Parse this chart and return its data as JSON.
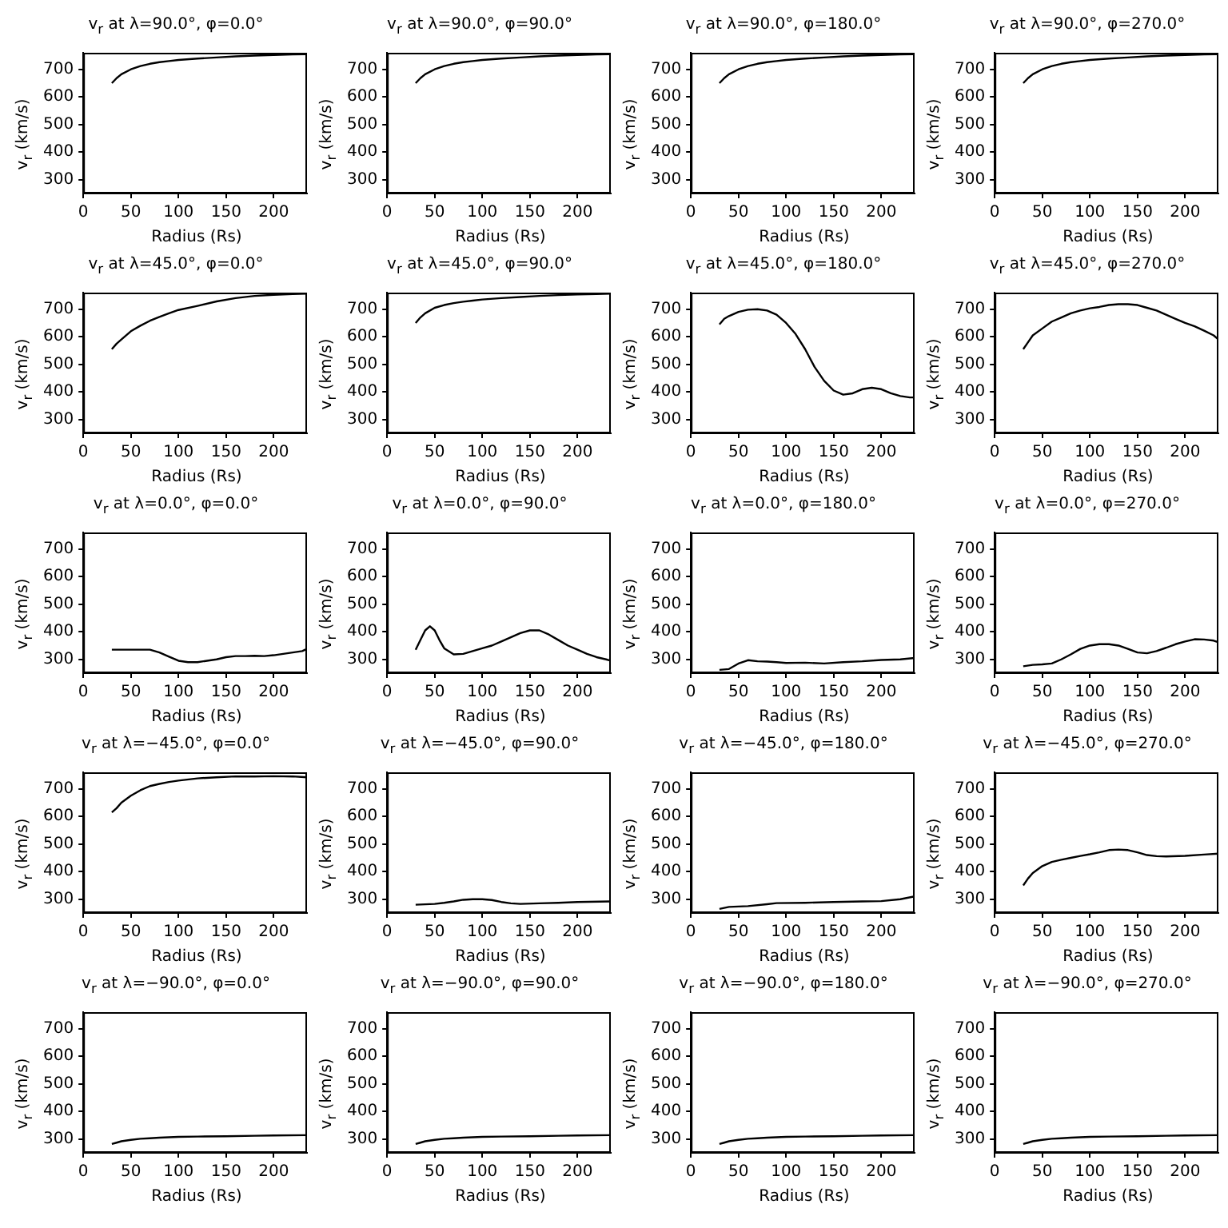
{
  "chart_data": [
    {
      "type": "line",
      "title": "v$_{r}$ at λ=90.0°, φ=0.0°",
      "xlabel": "Radius (Rs)",
      "ylabel": "v$_{r}$ (km/s)",
      "color": "#000000",
      "xlim": [
        0,
        235
      ],
      "ylim": [
        250,
        760
      ],
      "xticks": [
        0,
        50,
        100,
        150,
        200
      ],
      "yticks": [
        300,
        400,
        500,
        600,
        700
      ],
      "x": [
        30,
        35,
        40,
        50,
        60,
        70,
        80,
        90,
        100,
        120,
        140,
        160,
        180,
        200,
        220,
        235
      ],
      "values": [
        650,
        668,
        682,
        700,
        712,
        720,
        726,
        730,
        734,
        739,
        743,
        747,
        750,
        752,
        754,
        755
      ]
    },
    {
      "type": "line",
      "title": "v$_{r}$ at λ=90.0°, φ=90.0°",
      "xlabel": "Radius (Rs)",
      "ylabel": "v$_{r}$ (km/s)",
      "color": "#000000",
      "xlim": [
        0,
        235
      ],
      "ylim": [
        250,
        760
      ],
      "xticks": [
        0,
        50,
        100,
        150,
        200
      ],
      "yticks": [
        300,
        400,
        500,
        600,
        700
      ],
      "x": [
        30,
        35,
        40,
        50,
        60,
        70,
        80,
        90,
        100,
        120,
        140,
        160,
        180,
        200,
        220,
        235
      ],
      "values": [
        650,
        668,
        682,
        700,
        712,
        720,
        726,
        730,
        734,
        739,
        743,
        747,
        750,
        752,
        754,
        755
      ]
    },
    {
      "type": "line",
      "title": "v$_{r}$ at λ=90.0°, φ=180.0°",
      "xlabel": "Radius (Rs)",
      "ylabel": "v$_{r}$ (km/s)",
      "color": "#000000",
      "xlim": [
        0,
        235
      ],
      "ylim": [
        250,
        760
      ],
      "xticks": [
        0,
        50,
        100,
        150,
        200
      ],
      "yticks": [
        300,
        400,
        500,
        600,
        700
      ],
      "x": [
        30,
        35,
        40,
        50,
        60,
        70,
        80,
        90,
        100,
        120,
        140,
        160,
        180,
        200,
        220,
        235
      ],
      "values": [
        650,
        668,
        682,
        700,
        712,
        720,
        726,
        730,
        734,
        739,
        743,
        747,
        750,
        752,
        754,
        755
      ]
    },
    {
      "type": "line",
      "title": "v$_{r}$ at λ=90.0°, φ=270.0°",
      "xlabel": "Radius (Rs)",
      "ylabel": "v$_{r}$ (km/s)",
      "color": "#000000",
      "xlim": [
        0,
        235
      ],
      "ylim": [
        250,
        760
      ],
      "xticks": [
        0,
        50,
        100,
        150,
        200
      ],
      "yticks": [
        300,
        400,
        500,
        600,
        700
      ],
      "x": [
        30,
        35,
        40,
        50,
        60,
        70,
        80,
        90,
        100,
        120,
        140,
        160,
        180,
        200,
        220,
        235
      ],
      "values": [
        650,
        668,
        682,
        700,
        712,
        720,
        726,
        730,
        734,
        739,
        743,
        747,
        750,
        752,
        754,
        755
      ]
    },
    {
      "type": "line",
      "title": "v$_{r}$ at λ=45.0°, φ=0.0°",
      "xlabel": "Radius (Rs)",
      "ylabel": "v$_{r}$ (km/s)",
      "color": "#000000",
      "xlim": [
        0,
        235
      ],
      "ylim": [
        250,
        760
      ],
      "xticks": [
        0,
        50,
        100,
        150,
        200
      ],
      "yticks": [
        300,
        400,
        500,
        600,
        700
      ],
      "x": [
        30,
        35,
        40,
        50,
        60,
        70,
        80,
        90,
        100,
        120,
        140,
        160,
        180,
        200,
        220,
        235
      ],
      "values": [
        555,
        575,
        590,
        620,
        640,
        658,
        672,
        685,
        697,
        712,
        728,
        740,
        748,
        752,
        755,
        756
      ]
    },
    {
      "type": "line",
      "title": "v$_{r}$ at λ=45.0°, φ=90.0°",
      "xlabel": "Radius (Rs)",
      "ylabel": "v$_{r}$ (km/s)",
      "color": "#000000",
      "xlim": [
        0,
        235
      ],
      "ylim": [
        250,
        760
      ],
      "xticks": [
        0,
        50,
        100,
        150,
        200
      ],
      "yticks": [
        300,
        400,
        500,
        600,
        700
      ],
      "x": [
        30,
        35,
        40,
        50,
        60,
        70,
        80,
        90,
        100,
        120,
        140,
        160,
        180,
        200,
        220,
        235
      ],
      "values": [
        650,
        670,
        685,
        705,
        715,
        722,
        727,
        731,
        735,
        740,
        744,
        748,
        751,
        753,
        755,
        756
      ]
    },
    {
      "type": "line",
      "title": "v$_{r}$ at λ=45.0°, φ=180.0°",
      "xlabel": "Radius (Rs)",
      "ylabel": "v$_{r}$ (km/s)",
      "color": "#000000",
      "xlim": [
        0,
        235
      ],
      "ylim": [
        250,
        760
      ],
      "xticks": [
        0,
        50,
        100,
        150,
        200
      ],
      "yticks": [
        300,
        400,
        500,
        600,
        700
      ],
      "x": [
        30,
        35,
        40,
        50,
        60,
        70,
        80,
        90,
        100,
        110,
        120,
        130,
        140,
        150,
        160,
        170,
        180,
        190,
        200,
        210,
        220,
        230,
        235
      ],
      "values": [
        645,
        665,
        675,
        690,
        698,
        700,
        695,
        680,
        650,
        610,
        555,
        490,
        440,
        405,
        390,
        395,
        410,
        415,
        410,
        395,
        385,
        380,
        380
      ]
    },
    {
      "type": "line",
      "title": "v$_{r}$ at λ=45.0°, φ=270.0°",
      "xlabel": "Radius (Rs)",
      "ylabel": "v$_{r}$ (km/s)",
      "color": "#000000",
      "xlim": [
        0,
        235
      ],
      "ylim": [
        250,
        760
      ],
      "xticks": [
        0,
        50,
        100,
        150,
        200
      ],
      "yticks": [
        300,
        400,
        500,
        600,
        700
      ],
      "x": [
        30,
        35,
        40,
        50,
        60,
        70,
        80,
        90,
        100,
        110,
        120,
        130,
        140,
        150,
        160,
        170,
        180,
        190,
        200,
        210,
        220,
        230,
        235
      ],
      "values": [
        555,
        580,
        605,
        630,
        655,
        670,
        685,
        695,
        703,
        708,
        715,
        718,
        718,
        715,
        705,
        695,
        680,
        665,
        650,
        638,
        622,
        605,
        590
      ]
    },
    {
      "type": "line",
      "title": "v$_{r}$ at λ=0.0°, φ=0.0°",
      "xlabel": "Radius (Rs)",
      "ylabel": "v$_{r}$ (km/s)",
      "color": "#000000",
      "xlim": [
        0,
        235
      ],
      "ylim": [
        250,
        760
      ],
      "xticks": [
        0,
        50,
        100,
        150,
        200
      ],
      "yticks": [
        300,
        400,
        500,
        600,
        700
      ],
      "x": [
        30,
        70,
        80,
        90,
        100,
        110,
        120,
        130,
        140,
        150,
        160,
        170,
        180,
        190,
        200,
        210,
        220,
        230,
        235
      ],
      "values": [
        335,
        335,
        325,
        310,
        295,
        290,
        290,
        295,
        300,
        308,
        312,
        312,
        313,
        312,
        315,
        320,
        325,
        330,
        338
      ]
    },
    {
      "type": "line",
      "title": "v$_{r}$ at λ=0.0°, φ=90.0°",
      "xlabel": "Radius (Rs)",
      "ylabel": "v$_{r}$ (km/s)",
      "color": "#000000",
      "xlim": [
        0,
        235
      ],
      "ylim": [
        250,
        760
      ],
      "xticks": [
        0,
        50,
        100,
        150,
        200
      ],
      "yticks": [
        300,
        400,
        500,
        600,
        700
      ],
      "x": [
        30,
        35,
        40,
        45,
        50,
        55,
        60,
        70,
        80,
        90,
        100,
        110,
        120,
        130,
        140,
        150,
        160,
        170,
        180,
        190,
        200,
        210,
        220,
        230,
        235
      ],
      "values": [
        335,
        370,
        405,
        420,
        405,
        370,
        340,
        318,
        320,
        330,
        340,
        350,
        365,
        380,
        395,
        405,
        405,
        390,
        370,
        350,
        335,
        320,
        308,
        300,
        295
      ]
    },
    {
      "type": "line",
      "title": "v$_{r}$ at λ=0.0°, φ=180.0°",
      "xlabel": "Radius (Rs)",
      "ylabel": "v$_{r}$ (km/s)",
      "color": "#000000",
      "xlim": [
        0,
        235
      ],
      "ylim": [
        250,
        760
      ],
      "xticks": [
        0,
        50,
        100,
        150,
        200
      ],
      "yticks": [
        300,
        400,
        500,
        600,
        700
      ],
      "x": [
        30,
        40,
        50,
        60,
        70,
        80,
        90,
        100,
        120,
        140,
        160,
        180,
        200,
        220,
        235
      ],
      "values": [
        262,
        265,
        285,
        297,
        293,
        292,
        290,
        287,
        288,
        285,
        290,
        293,
        298,
        300,
        305
      ]
    },
    {
      "type": "line",
      "title": "v$_{r}$ at λ=0.0°, φ=270.0°",
      "xlabel": "Radius (Rs)",
      "ylabel": "v$_{r}$ (km/s)",
      "color": "#000000",
      "xlim": [
        0,
        235
      ],
      "ylim": [
        250,
        760
      ],
      "xticks": [
        0,
        50,
        100,
        150,
        200
      ],
      "yticks": [
        300,
        400,
        500,
        600,
        700
      ],
      "x": [
        30,
        40,
        50,
        60,
        70,
        80,
        90,
        100,
        110,
        120,
        130,
        140,
        150,
        160,
        170,
        180,
        190,
        200,
        210,
        220,
        230,
        235
      ],
      "values": [
        275,
        280,
        282,
        285,
        300,
        318,
        338,
        350,
        355,
        355,
        350,
        338,
        325,
        322,
        330,
        342,
        355,
        365,
        373,
        372,
        368,
        362
      ]
    },
    {
      "type": "line",
      "title": "v$_{r}$ at λ=−45.0°, φ=0.0°",
      "xlabel": "Radius (Rs)",
      "ylabel": "v$_{r}$ (km/s)",
      "color": "#000000",
      "xlim": [
        0,
        235
      ],
      "ylim": [
        250,
        760
      ],
      "xticks": [
        0,
        50,
        100,
        150,
        200
      ],
      "yticks": [
        300,
        400,
        500,
        600,
        700
      ],
      "x": [
        30,
        35,
        40,
        50,
        60,
        70,
        80,
        90,
        100,
        120,
        140,
        160,
        180,
        200,
        220,
        235
      ],
      "values": [
        615,
        630,
        650,
        675,
        695,
        710,
        718,
        725,
        730,
        738,
        742,
        745,
        745,
        746,
        745,
        742
      ]
    },
    {
      "type": "line",
      "title": "v$_{r}$ at λ=−45.0°, φ=90.0°",
      "xlabel": "Radius (Rs)",
      "ylabel": "v$_{r}$ (km/s)",
      "color": "#000000",
      "xlim": [
        0,
        235
      ],
      "ylim": [
        250,
        760
      ],
      "xticks": [
        0,
        50,
        100,
        150,
        200
      ],
      "yticks": [
        300,
        400,
        500,
        600,
        700
      ],
      "x": [
        30,
        50,
        60,
        70,
        80,
        90,
        100,
        110,
        120,
        130,
        140,
        160,
        180,
        200,
        235
      ],
      "values": [
        280,
        283,
        287,
        292,
        298,
        300,
        300,
        297,
        290,
        285,
        283,
        285,
        287,
        290,
        292
      ]
    },
    {
      "type": "line",
      "title": "v$_{r}$ at λ=−45.0°, φ=180.0°",
      "xlabel": "Radius (Rs)",
      "ylabel": "v$_{r}$ (km/s)",
      "color": "#000000",
      "xlim": [
        0,
        235
      ],
      "ylim": [
        250,
        760
      ],
      "xticks": [
        0,
        50,
        100,
        150,
        200
      ],
      "yticks": [
        300,
        400,
        500,
        600,
        700
      ],
      "x": [
        30,
        40,
        60,
        80,
        90,
        120,
        150,
        180,
        200,
        220,
        235
      ],
      "values": [
        265,
        272,
        275,
        282,
        286,
        287,
        290,
        292,
        293,
        300,
        310
      ]
    },
    {
      "type": "line",
      "title": "v$_{r}$ at λ=−45.0°, φ=270.0°",
      "xlabel": "Radius (Rs)",
      "ylabel": "v$_{r}$ (km/s)",
      "color": "#000000",
      "xlim": [
        0,
        235
      ],
      "ylim": [
        250,
        760
      ],
      "xticks": [
        0,
        50,
        100,
        150,
        200
      ],
      "yticks": [
        300,
        400,
        500,
        600,
        700
      ],
      "x": [
        30,
        35,
        40,
        50,
        60,
        70,
        80,
        90,
        100,
        110,
        120,
        130,
        140,
        150,
        160,
        170,
        180,
        200,
        220,
        235
      ],
      "values": [
        350,
        375,
        395,
        420,
        435,
        443,
        450,
        457,
        463,
        470,
        478,
        480,
        478,
        470,
        460,
        456,
        455,
        457,
        462,
        465
      ]
    },
    {
      "type": "line",
      "title": "v$_{r}$ at λ=−90.0°, φ=0.0°",
      "xlabel": "Radius (Rs)",
      "ylabel": "v$_{r}$ (km/s)",
      "color": "#000000",
      "xlim": [
        0,
        235
      ],
      "ylim": [
        250,
        760
      ],
      "xticks": [
        0,
        50,
        100,
        150,
        200
      ],
      "yticks": [
        300,
        400,
        500,
        600,
        700
      ],
      "x": [
        30,
        35,
        40,
        50,
        60,
        70,
        80,
        100,
        120,
        150,
        180,
        200,
        235
      ],
      "values": [
        282,
        287,
        292,
        297,
        301,
        303,
        305,
        308,
        309,
        310,
        312,
        313,
        314
      ]
    },
    {
      "type": "line",
      "title": "v$_{r}$ at λ=−90.0°, φ=90.0°",
      "xlabel": "Radius (Rs)",
      "ylabel": "v$_{r}$ (km/s)",
      "color": "#000000",
      "xlim": [
        0,
        235
      ],
      "ylim": [
        250,
        760
      ],
      "xticks": [
        0,
        50,
        100,
        150,
        200
      ],
      "yticks": [
        300,
        400,
        500,
        600,
        700
      ],
      "x": [
        30,
        35,
        40,
        50,
        60,
        70,
        80,
        100,
        120,
        150,
        180,
        200,
        235
      ],
      "values": [
        282,
        287,
        292,
        297,
        301,
        303,
        305,
        308,
        309,
        310,
        312,
        313,
        314
      ]
    },
    {
      "type": "line",
      "title": "v$_{r}$ at λ=−90.0°, φ=180.0°",
      "xlabel": "Radius (Rs)",
      "ylabel": "v$_{r}$ (km/s)",
      "color": "#000000",
      "xlim": [
        0,
        235
      ],
      "ylim": [
        250,
        760
      ],
      "xticks": [
        0,
        50,
        100,
        150,
        200
      ],
      "yticks": [
        300,
        400,
        500,
        600,
        700
      ],
      "x": [
        30,
        35,
        40,
        50,
        60,
        70,
        80,
        100,
        120,
        150,
        180,
        200,
        235
      ],
      "values": [
        282,
        287,
        292,
        297,
        301,
        303,
        305,
        308,
        309,
        310,
        312,
        313,
        314
      ]
    },
    {
      "type": "line",
      "title": "v$_{r}$ at λ=−90.0°, φ=270.0°",
      "xlabel": "Radius (Rs)",
      "ylabel": "v$_{r}$ (km/s)",
      "color": "#000000",
      "xlim": [
        0,
        235
      ],
      "ylim": [
        250,
        760
      ],
      "xticks": [
        0,
        50,
        100,
        150,
        200
      ],
      "yticks": [
        300,
        400,
        500,
        600,
        700
      ],
      "x": [
        30,
        35,
        40,
        50,
        60,
        70,
        80,
        100,
        120,
        150,
        180,
        200,
        235
      ],
      "values": [
        282,
        287,
        292,
        297,
        301,
        303,
        305,
        308,
        309,
        310,
        312,
        313,
        314
      ]
    }
  ]
}
